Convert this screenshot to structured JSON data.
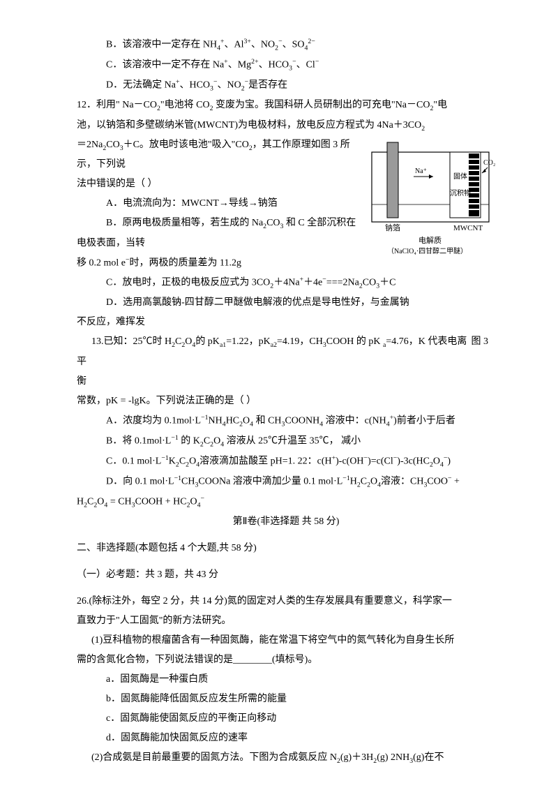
{
  "q11": {
    "optB": "B．该溶液中一定存在 NH₄⁺、Al³⁺、NO₂⁻、SO₄²⁻",
    "optC": "C．该溶液中一定不存在 Na⁺、Mg²⁺、HCO₃⁻、Cl⁻",
    "optD": "D．无法确定 Na⁺、HCO₃⁻、NO₂⁻是否存在"
  },
  "q12": {
    "line1": "12．利用\"  Na－CO₂\"电池将 CO₂ 变废为宝。我国科研人员研制出的可充电\"Na－CO₂\"电",
    "line2": "池，以钠箔和多壁碳纳米管(MWCNT)为电极材料，放电反应方程式为 4Na＋3CO₂",
    "line3": "＝2Na₂CO₃＋C。放电时该电池\"吸入\"CO₂，其工作原理如图 3 所示，下列说",
    "line4": "法中错误的是（ ）",
    "optA": "A．电流流向为：MWCNT→导线→钠箔",
    "optB1": "B．原两电极质量相等，若生成的 Na₂CO₃ 和 C 全部沉积在电极表面，当转",
    "optB2": "移 0.2 mol e⁻时，两极的质量差为 11.2g",
    "optC": "C．放电时，正极的电极反应式为 3CO₂＋4Na⁺＋4e⁻===2Na₂CO₃＋C",
    "optD1": "D．选用高氯酸钠-四甘醇二甲醚做电解液的优点是导电性好，与金属钠",
    "optD2": "不反应，难挥发",
    "figlabel": "图 3",
    "diagram": {
      "labels": {
        "na": "Na⁺",
        "co2": "CO₂",
        "solid": "固体",
        "deposit": "沉积物",
        "left_elec": "钠箔",
        "right_elec": "MWCNT",
        "bottom1": "电解质",
        "bottom2": "（NaClO₄·四甘醇二甲醚）"
      },
      "colors": {
        "stroke": "#000000",
        "shade": "#9a9a9a",
        "bg": "#ffffff"
      }
    }
  },
  "q13": {
    "line1": "13.已知：25℃时 H₂C₂O₄的 pKₐ₁=1.22，pKₐ₂=4.19，CH₃COOH 的 pK  ₐ=4.76，K 代表电离平",
    "line2": "衡",
    "line3": "常数，pK = -lgK。下列说法正确的是（    ）",
    "optA": "A．浓度均为 0.1mol·L⁻¹NH₄HC₂O₄ 和 CH₃COONH₄ 溶液中：c(NH₄⁺)前者小于后者",
    "optB": "B．将 0.1mol·L⁻¹ 的 K₂C₂O₄ 溶液从 25℃升温至 35℃，          减小",
    "optC": "C．0.1 mol·L⁻¹K₂C₂O₄溶液滴加盐酸至 pH=1. 22：c(H⁺)-c(OH⁻)=c(Cl⁻)-3c(HC₂O₄⁻)",
    "optD1": "D．向 0.1   mol·L⁻¹CH₃COONa 溶液中滴加少量 0.1   mol·L⁻¹H₂C₂O₄溶液：CH₃COO⁻  +",
    "optD2": "H₂C₂O₄ = CH₃COOH + HC₂O₄⁻"
  },
  "part2": {
    "title": "第Ⅱ卷(非选择题  共 58 分)",
    "heading": "二、非选择题(本题包括 4 个大题,共 58 分)",
    "sub": "（一）必考题：共 3 题，共 43 分"
  },
  "q26": {
    "line1": "26.(除标注外，每空 2 分，共 14 分)氮的固定对人类的生存发展具有重要意义，科学家一",
    "line2": "直致力于\"人工固氮\"的新方法研究。",
    "p1a": "(1)豆科植物的根瘤菌含有一种固氮酶，能在常温下将空气中的氮气转化为自身生长所",
    "p1b": "需的含氮化合物，下列说法错误的是________(填标号)。",
    "a": "a．固氮酶是一种蛋白质",
    "b": "b．固氮酶能降低固氮反应发生所需的能量",
    "c": "c．固氮酶能使固氮反应的平衡正向移动",
    "d": "d．固氮酶能加快固氮反应的速率",
    "p2": "(2)合成氨是目前最重要的固氮方法。下图为合成氨反应 N₂(g)＋3H₂(g)    2NH₃(g)在不"
  }
}
